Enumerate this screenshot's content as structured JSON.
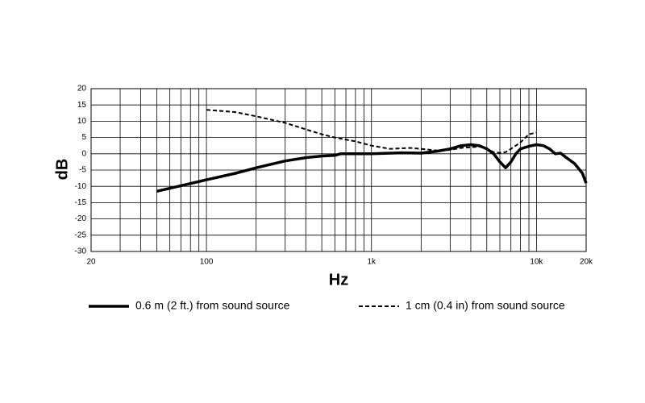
{
  "chart_data": {
    "type": "line",
    "x_label": "Hz",
    "y_label": "dB",
    "log_x": true,
    "grid": true,
    "xlim": [
      20,
      20000
    ],
    "ylim": [
      -30,
      20
    ],
    "xticks": [
      20,
      100,
      {
        "value": 1000,
        "label": "1k"
      },
      {
        "value": 10000,
        "label": "10k"
      },
      {
        "value": 20000,
        "label": "20k"
      }
    ],
    "xgrid": [
      30,
      40,
      50,
      60,
      70,
      80,
      90,
      200,
      300,
      400,
      500,
      600,
      700,
      800,
      900,
      2000,
      3000,
      4000,
      5000,
      6000,
      7000,
      8000,
      9000
    ],
    "yticks": [
      -30,
      -25,
      -20,
      -15,
      -10,
      -5,
      0,
      5,
      10,
      15,
      20
    ],
    "legend": "bottom",
    "series": [
      {
        "name": "0.6 m (2 ft.) from sound source",
        "color": "#000000",
        "dash": "solid",
        "x": [
          50,
          70,
          100,
          150,
          200,
          300,
          400,
          500,
          600,
          650,
          800,
          1000,
          1500,
          2000,
          2500,
          3000,
          3500,
          4000,
          4500,
          5000,
          5500,
          6000,
          6500,
          7000,
          7500,
          8000,
          9000,
          10000,
          11000,
          12000,
          13000,
          14000,
          15000,
          17000,
          19000,
          20000
        ],
        "values": [
          -11.5,
          -9.8,
          -8,
          -6,
          -4.3,
          -2.2,
          -1.2,
          -0.7,
          -0.5,
          0,
          0,
          0,
          0.3,
          0.2,
          0.8,
          1.5,
          2.5,
          2.8,
          2.5,
          1.5,
          0,
          -2.5,
          -4.3,
          -2.5,
          0,
          1.5,
          2.3,
          2.8,
          2.5,
          1.5,
          0,
          0.2,
          -1,
          -3,
          -6,
          -9
        ]
      },
      {
        "name": "1 cm (0.4 in) from sound source",
        "color": "#000000",
        "dash": "dashed",
        "x": [
          100,
          150,
          200,
          300,
          400,
          500,
          600,
          800,
          1000,
          1300,
          1700,
          2000,
          2500,
          3000,
          3500,
          4000,
          4500,
          5000,
          5500,
          6000,
          6500,
          7000,
          8000,
          9000,
          10000
        ],
        "values": [
          13.5,
          12.8,
          11.5,
          9.5,
          7.5,
          6,
          5,
          3.8,
          2.5,
          1.5,
          1.8,
          1.5,
          1,
          1.2,
          1.8,
          2,
          2.2,
          1.5,
          0.5,
          0.3,
          0.5,
          1.5,
          3.5,
          6,
          6.5
        ]
      }
    ]
  }
}
